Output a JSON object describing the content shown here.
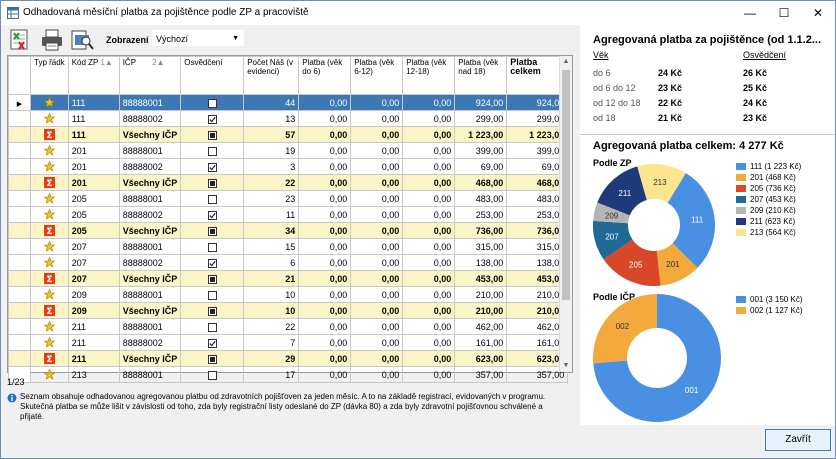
{
  "window": {
    "title": "Odhadovaná měsíční platba za pojištěnce podle ZP a pracoviště"
  },
  "toolbar": {
    "zobrazeni_label": "Zobrazení",
    "zobrazeni_value": "Výchozí"
  },
  "grid": {
    "headers": {
      "typ": "Typ řádk",
      "kod_zp": "Kód ZP",
      "kod_zp_sort": "1",
      "icp": "IČP",
      "icp_sort": "2",
      "osvedceni": "Osvědčení",
      "pocet": "Počet Náš (v evidenci)",
      "p6": "Platba (věk do 6)",
      "p612": "Platba (věk 6-12)",
      "p1218": "Platba (věk 12-18)",
      "p18": "Platba (věk nad 18)",
      "celkem": "Platba celkem"
    },
    "rows": [
      {
        "sum": false,
        "sel": true,
        "zp": "111",
        "icp": "88888001",
        "osv": "empty",
        "pocet": "44",
        "p6": "0,00",
        "p612": "0,00",
        "p1218": "0,00",
        "p18": "924,00",
        "celkem": "924,00"
      },
      {
        "sum": false,
        "sel": false,
        "zp": "111",
        "icp": "88888002",
        "osv": "checked",
        "pocet": "13",
        "p6": "0,00",
        "p612": "0,00",
        "p1218": "0,00",
        "p18": "299,00",
        "celkem": "299,00"
      },
      {
        "sum": true,
        "sel": false,
        "zp": "111",
        "icp": "Všechny IČP",
        "osv": "filled",
        "pocet": "57",
        "p6": "0,00",
        "p612": "0,00",
        "p1218": "0,00",
        "p18": "1 223,00",
        "celkem": "1 223,00"
      },
      {
        "sum": false,
        "sel": false,
        "zp": "201",
        "icp": "88888001",
        "osv": "empty",
        "pocet": "19",
        "p6": "0,00",
        "p612": "0,00",
        "p1218": "0,00",
        "p18": "399,00",
        "celkem": "399,00"
      },
      {
        "sum": false,
        "sel": false,
        "zp": "201",
        "icp": "88888002",
        "osv": "checked",
        "pocet": "3",
        "p6": "0,00",
        "p612": "0,00",
        "p1218": "0,00",
        "p18": "69,00",
        "celkem": "69,00"
      },
      {
        "sum": true,
        "sel": false,
        "zp": "201",
        "icp": "Všechny IČP",
        "osv": "filled",
        "pocet": "22",
        "p6": "0,00",
        "p612": "0,00",
        "p1218": "0,00",
        "p18": "468,00",
        "celkem": "468,00"
      },
      {
        "sum": false,
        "sel": false,
        "zp": "205",
        "icp": "88888001",
        "osv": "empty",
        "pocet": "23",
        "p6": "0,00",
        "p612": "0,00",
        "p1218": "0,00",
        "p18": "483,00",
        "celkem": "483,00"
      },
      {
        "sum": false,
        "sel": false,
        "zp": "205",
        "icp": "88888002",
        "osv": "checked",
        "pocet": "11",
        "p6": "0,00",
        "p612": "0,00",
        "p1218": "0,00",
        "p18": "253,00",
        "celkem": "253,00"
      },
      {
        "sum": true,
        "sel": false,
        "zp": "205",
        "icp": "Všechny IČP",
        "osv": "filled",
        "pocet": "34",
        "p6": "0,00",
        "p612": "0,00",
        "p1218": "0,00",
        "p18": "736,00",
        "celkem": "736,00"
      },
      {
        "sum": false,
        "sel": false,
        "zp": "207",
        "icp": "88888001",
        "osv": "empty",
        "pocet": "15",
        "p6": "0,00",
        "p612": "0,00",
        "p1218": "0,00",
        "p18": "315,00",
        "celkem": "315,00"
      },
      {
        "sum": false,
        "sel": false,
        "zp": "207",
        "icp": "88888002",
        "osv": "checked",
        "pocet": "6",
        "p6": "0,00",
        "p612": "0,00",
        "p1218": "0,00",
        "p18": "138,00",
        "celkem": "138,00"
      },
      {
        "sum": true,
        "sel": false,
        "zp": "207",
        "icp": "Všechny IČP",
        "osv": "filled",
        "pocet": "21",
        "p6": "0,00",
        "p612": "0,00",
        "p1218": "0,00",
        "p18": "453,00",
        "celkem": "453,00"
      },
      {
        "sum": false,
        "sel": false,
        "zp": "209",
        "icp": "88888001",
        "osv": "empty",
        "pocet": "10",
        "p6": "0,00",
        "p612": "0,00",
        "p1218": "0,00",
        "p18": "210,00",
        "celkem": "210,00"
      },
      {
        "sum": true,
        "sel": false,
        "zp": "209",
        "icp": "Všechny IČP",
        "osv": "filled",
        "pocet": "10",
        "p6": "0,00",
        "p612": "0,00",
        "p1218": "0,00",
        "p18": "210,00",
        "celkem": "210,00"
      },
      {
        "sum": false,
        "sel": false,
        "zp": "211",
        "icp": "88888001",
        "osv": "empty",
        "pocet": "22",
        "p6": "0,00",
        "p612": "0,00",
        "p1218": "0,00",
        "p18": "462,00",
        "celkem": "462,00"
      },
      {
        "sum": false,
        "sel": false,
        "zp": "211",
        "icp": "88888002",
        "osv": "checked",
        "pocet": "7",
        "p6": "0,00",
        "p612": "0,00",
        "p1218": "0,00",
        "p18": "161,00",
        "celkem": "161,00"
      },
      {
        "sum": true,
        "sel": false,
        "zp": "211",
        "icp": "Všechny IČP",
        "osv": "filled",
        "pocet": "29",
        "p6": "0,00",
        "p612": "0,00",
        "p1218": "0,00",
        "p18": "623,00",
        "celkem": "623,00"
      },
      {
        "sum": false,
        "sel": false,
        "zp": "213",
        "icp": "88888001",
        "osv": "empty",
        "pocet": "17",
        "p6": "0,00",
        "p612": "0,00",
        "p1218": "0,00",
        "p18": "357,00",
        "celkem": "357,00"
      }
    ]
  },
  "pager": "1/23",
  "info": {
    "line1": "Seznam obsahuje odhadovanou agregovanou platbu od zdravotních pojišťoven za jeden měsíc. A to na základě registrací, evidovaných v programu.",
    "line2": "Skutečná platba se může lišit v závislosti od toho, zda byly registrační listy odeslané do ZP (dávka 80) a zda byly zdravotní pojišťovnou schválené a přijaté."
  },
  "summary": {
    "title": "Agregovaná platba za pojištěnce (od 1.1.2...",
    "col_vek": "Věk",
    "col_osv": "Osvědčení",
    "rows": [
      {
        "label": "do 6",
        "a": "24 Kč",
        "b": "26 Kč"
      },
      {
        "label": "od 6 do 12",
        "a": "23 Kč",
        "b": "25 Kč"
      },
      {
        "label": "od 12 do 18",
        "a": "22 Kč",
        "b": "24 Kč"
      },
      {
        "label": "od 18",
        "a": "21 Kč",
        "b": "23 Kč"
      }
    ],
    "total": "Agregovaná platba celkem: 4 277 Kč"
  },
  "chart_data": [
    {
      "type": "pie",
      "title": "Podle ZP",
      "categories": [
        "111",
        "201",
        "205",
        "207",
        "209",
        "211",
        "213"
      ],
      "values": [
        1223,
        468,
        736,
        453,
        210,
        623,
        564
      ],
      "legend": [
        "111 (1 223 Kč)",
        "201 (468 Kč)",
        "205 (736 Kč)",
        "207 (453 Kč)",
        "209 (210 Kč)",
        "211 (623 Kč)",
        "213 (564 Kč)"
      ],
      "colors": [
        "#4a90e2",
        "#f4a93c",
        "#d9472b",
        "#1f6a94",
        "#b5b5b5",
        "#1e3a78",
        "#fde58f"
      ],
      "legend_position": "right"
    },
    {
      "type": "pie",
      "title": "Podle IČP",
      "categories": [
        "001",
        "002"
      ],
      "values": [
        3150,
        1127
      ],
      "legend": [
        "001 (3 150 Kč)",
        "002 (1 127 Kč)"
      ],
      "colors": [
        "#4a90e2",
        "#f4a93c"
      ],
      "legend_position": "right"
    }
  ],
  "buttons": {
    "close": "Zavřít"
  },
  "icons": {
    "app": "table-icon",
    "excel": "excel-export-icon",
    "print": "printer-icon",
    "preview": "print-preview-icon"
  },
  "colors": {
    "selected_row": "#3c78b4",
    "summary_row": "#fdf5c8",
    "accent": "#3c7fb1"
  }
}
